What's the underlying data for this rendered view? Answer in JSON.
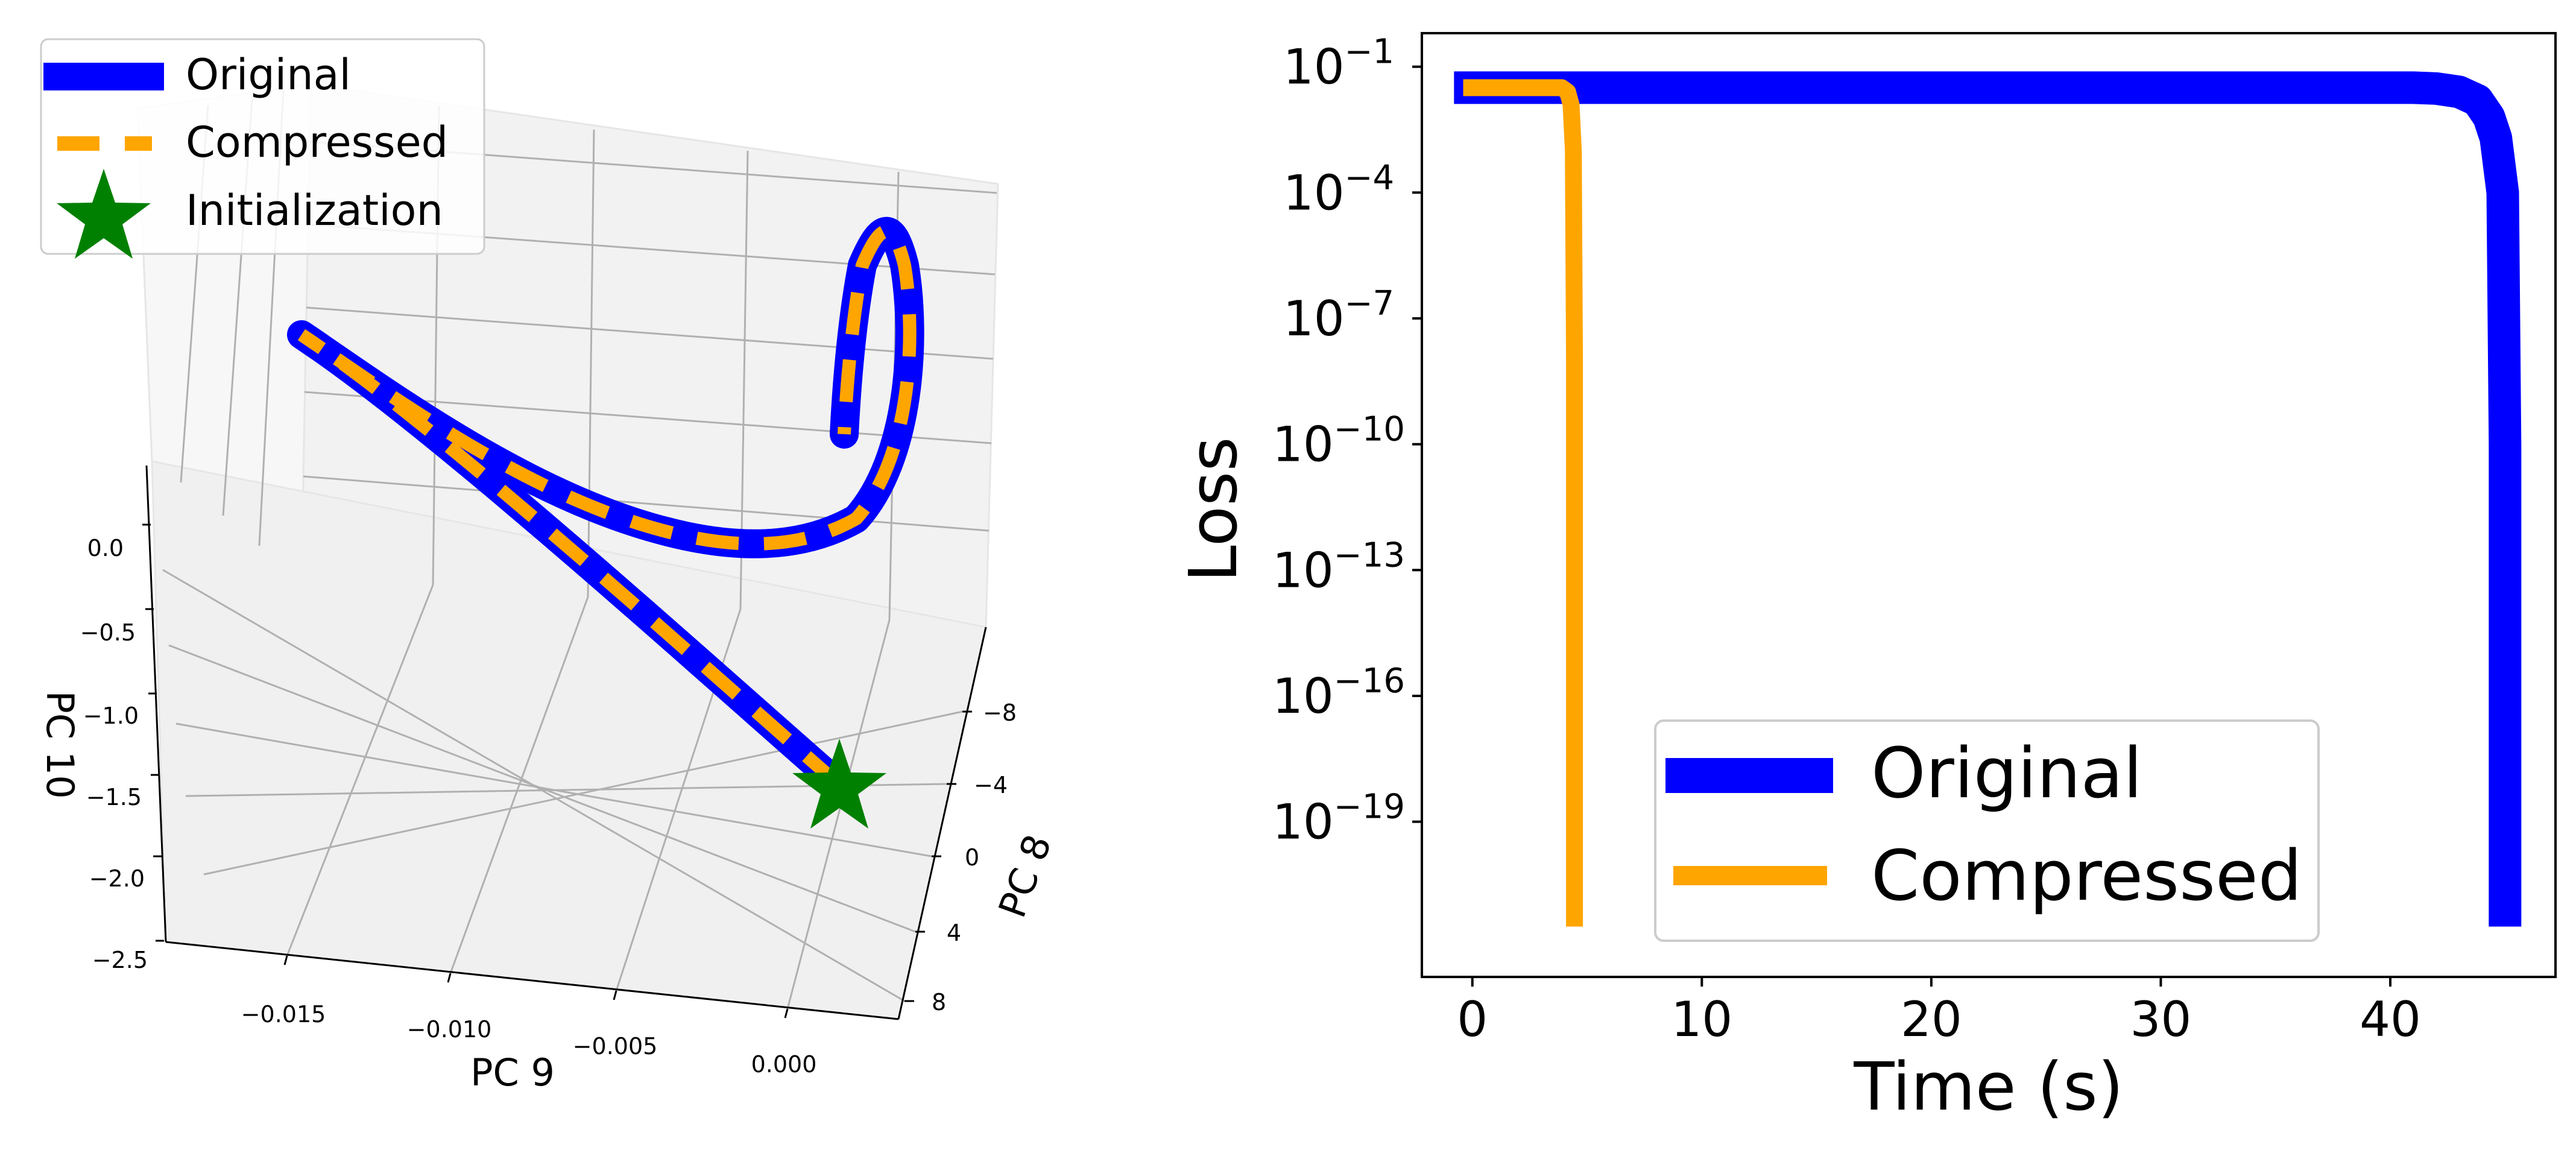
{
  "colors": {
    "original": "#0000ff",
    "compressed": "#ffa500",
    "initialization": "#008000",
    "pane": "#f2f2f2",
    "grid": "#b0b0b0",
    "axis": "#000000"
  },
  "chart_data": [
    {
      "type": "line3d",
      "title": "",
      "xlabel": "PC 9",
      "ylabel": "PC 8",
      "zlabel": "PC 10",
      "x_ticks": [
        "−0.015",
        "−0.010",
        "−0.005",
        "0.000"
      ],
      "y_ticks": [
        "−8",
        "−4",
        "0",
        "4",
        "8"
      ],
      "z_ticks": [
        "0.0",
        "−0.5",
        "−1.0",
        "−1.5",
        "−2.0",
        "−2.5"
      ],
      "grid": true,
      "legend_position": "top-left",
      "legend": [
        {
          "label": "Original",
          "marker": "line"
        },
        {
          "label": "Compressed",
          "marker": "dashed-line"
        },
        {
          "label": "Initialization",
          "marker": "star"
        }
      ],
      "series": [
        {
          "name": "Original",
          "style": "solid",
          "points": "trajectory"
        },
        {
          "name": "Compressed",
          "style": "dashed",
          "points": "trajectory"
        }
      ],
      "initialization": {
        "name": "Initialization",
        "marker": "star"
      }
    },
    {
      "type": "line",
      "title": "",
      "xlabel": "Time (s)",
      "ylabel": "Loss",
      "xlim": [
        -2.2,
        47.2
      ],
      "ylim_log10": [
        -22.7,
        -0.2
      ],
      "yscale": "log",
      "x_ticks": [
        0,
        10,
        20,
        30,
        40
      ],
      "x_tick_labels": [
        "0",
        "10",
        "20",
        "30",
        "40"
      ],
      "y_ticks_log10": [
        -1,
        -4,
        -7,
        -10,
        -13,
        -16,
        -19
      ],
      "y_tick_labels": [
        "10",
        "10",
        "10",
        "10",
        "10",
        "10",
        "10"
      ],
      "y_tick_exponents": [
        "−1",
        "−4",
        "−7",
        "−10",
        "−13",
        "−16",
        "−19"
      ],
      "grid": false,
      "legend_position": "lower-center",
      "series": [
        {
          "name": "Original",
          "x": [
            -0.8,
            41.0,
            42.0,
            43.0,
            43.8,
            44.3,
            44.6,
            44.9,
            45.0,
            45.0
          ],
          "log10_y": [
            -1.5,
            -1.5,
            -1.52,
            -1.6,
            -1.8,
            -2.2,
            -2.7,
            -4.0,
            -10.0,
            -21.5
          ]
        },
        {
          "name": "Compressed",
          "x": [
            -0.4,
            3.9,
            4.15,
            4.3,
            4.4,
            4.45,
            4.45
          ],
          "log10_y": [
            -1.5,
            -1.5,
            -1.6,
            -1.9,
            -3.0,
            -8.0,
            -21.5
          ]
        }
      ]
    }
  ]
}
